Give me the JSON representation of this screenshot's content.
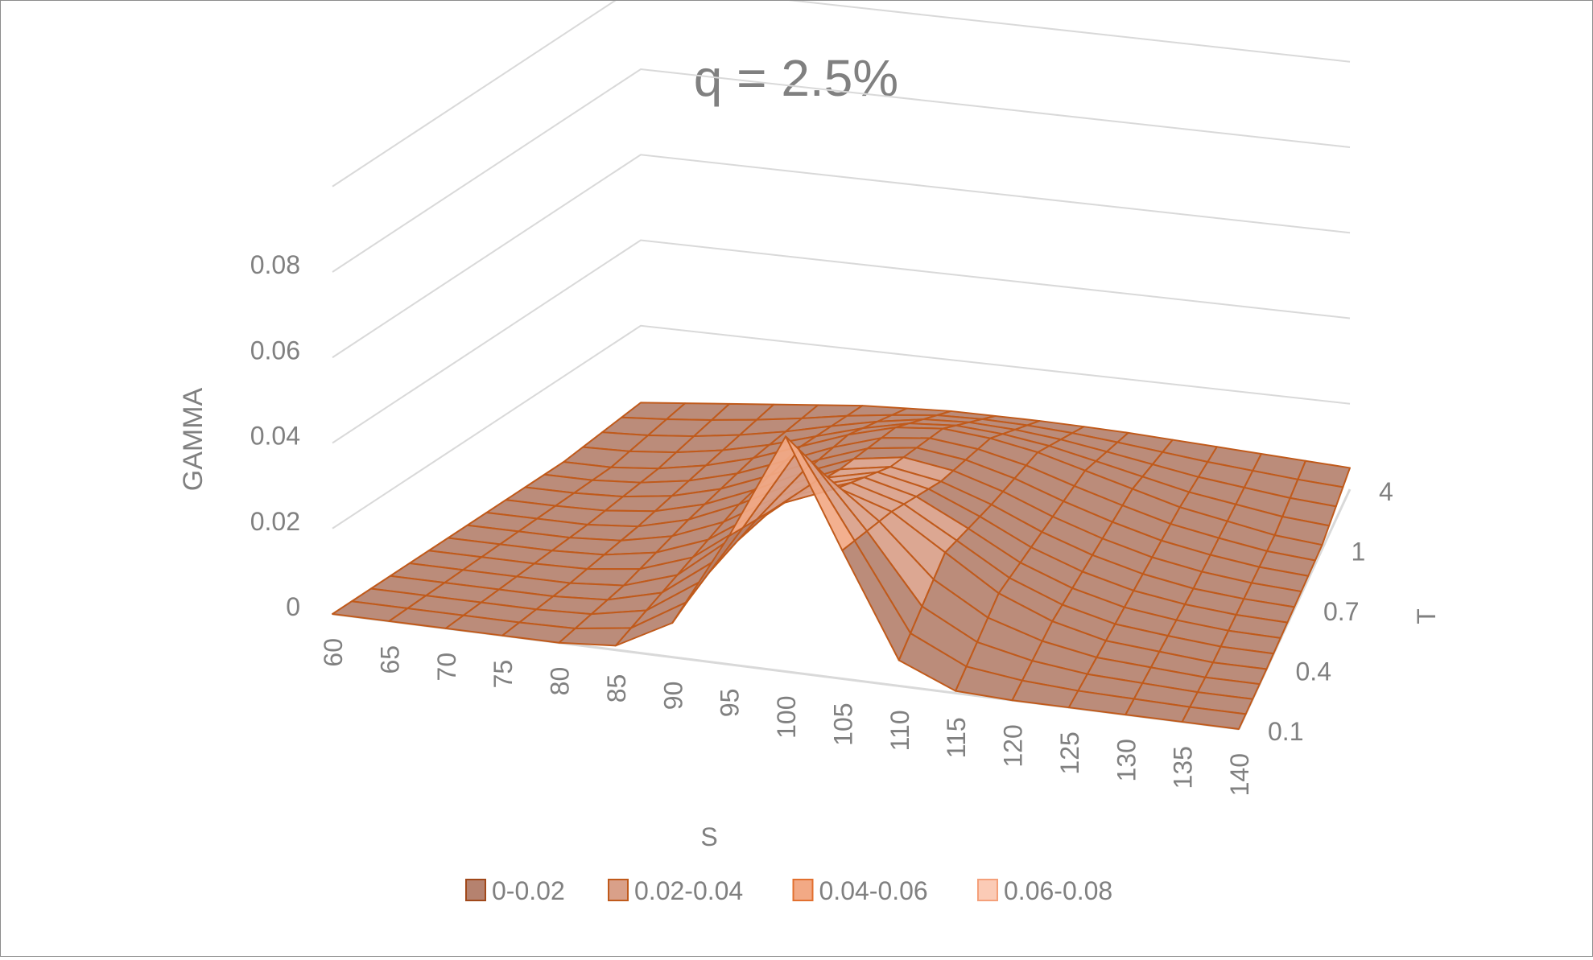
{
  "chart_data": {
    "type": "surface",
    "title": "q = 2.5%",
    "xlabel": "S",
    "ylabel": "T",
    "zlabel": "GAMMA",
    "x": [
      60,
      65,
      70,
      75,
      80,
      85,
      90,
      95,
      100,
      105,
      110,
      115,
      120,
      125,
      130,
      135,
      140
    ],
    "y_tick_labels": [
      "0.1",
      "0.4",
      "0.7",
      "1",
      "4"
    ],
    "z_ticks": [
      "0",
      "0.02",
      "0.04",
      "0.06",
      "0.08"
    ],
    "zlim": [
      0,
      0.08
    ],
    "legend": {
      "position": "bottom",
      "entries": [
        {
          "label": "0-0.02",
          "color": "#b5826f"
        },
        {
          "label": "0.02-0.04",
          "color": "#d9a089"
        },
        {
          "label": "0.04-0.06",
          "color": "#f2a985"
        },
        {
          "label": "0.06-0.08",
          "color": "#fbcbb6"
        }
      ]
    },
    "surface_profiles": [
      {
        "T": "0.1",
        "gamma": [
          0,
          0,
          0,
          0,
          0,
          0.001,
          0.008,
          0.03,
          0.055,
          0.03,
          0.006,
          0.0005,
          0,
          0,
          0,
          0,
          0
        ]
      },
      {
        "T": "0.4",
        "gamma": [
          0,
          0,
          0,
          0,
          0.001,
          0.005,
          0.015,
          0.025,
          0.03,
          0.026,
          0.018,
          0.01,
          0.005,
          0.002,
          0.001,
          0,
          0
        ]
      },
      {
        "T": "0.7",
        "gamma": [
          0,
          0,
          0,
          0.001,
          0.004,
          0.009,
          0.015,
          0.02,
          0.022,
          0.02,
          0.016,
          0.011,
          0.007,
          0.004,
          0.002,
          0.001,
          0.0005
        ]
      },
      {
        "T": "1",
        "gamma": [
          0,
          0,
          0.001,
          0.003,
          0.006,
          0.01,
          0.014,
          0.017,
          0.018,
          0.017,
          0.015,
          0.012,
          0.009,
          0.006,
          0.004,
          0.002,
          0.001
        ]
      },
      {
        "T": "4",
        "gamma": [
          0.002,
          0.003,
          0.004,
          0.005,
          0.006,
          0.007,
          0.0075,
          0.008,
          0.008,
          0.008,
          0.0078,
          0.0075,
          0.007,
          0.0065,
          0.006,
          0.0055,
          0.005
        ]
      }
    ],
    "grid": true
  },
  "colors": {
    "gridline": "#d9d9d9",
    "mesh_line": "#c05a1b",
    "text": "#808080",
    "frame": "#8c8c8c"
  }
}
